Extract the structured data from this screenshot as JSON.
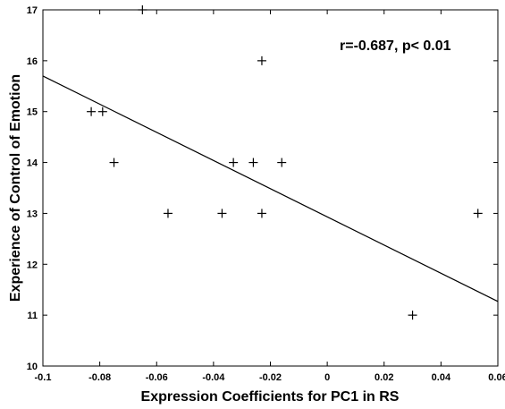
{
  "chart_data": {
    "type": "scatter",
    "title": "",
    "xlabel": "Expression Coefficients for PC1 in RS",
    "ylabel": "Experience of Control of Emotion",
    "xlim": [
      -0.1,
      0.06
    ],
    "ylim": [
      10,
      17
    ],
    "xticks": [
      "-0.1",
      "-0.08",
      "-0.06",
      "-0.04",
      "-0.02",
      "0",
      "0.02",
      "0.04",
      "0.06"
    ],
    "yticks": [
      "10",
      "11",
      "12",
      "13",
      "14",
      "15",
      "16",
      "17"
    ],
    "grid": false,
    "marker": "+",
    "annotation": "r=-0.687, p< 0.01",
    "points": [
      {
        "x": -0.083,
        "y": 15
      },
      {
        "x": -0.079,
        "y": 15
      },
      {
        "x": -0.075,
        "y": 14
      },
      {
        "x": -0.065,
        "y": 17
      },
      {
        "x": -0.056,
        "y": 13
      },
      {
        "x": -0.037,
        "y": 13
      },
      {
        "x": -0.033,
        "y": 14
      },
      {
        "x": -0.026,
        "y": 14
      },
      {
        "x": -0.023,
        "y": 13
      },
      {
        "x": -0.023,
        "y": 16
      },
      {
        "x": -0.016,
        "y": 14
      },
      {
        "x": 0.03,
        "y": 11
      },
      {
        "x": 0.053,
        "y": 13
      }
    ],
    "fit_line": {
      "x": [
        -0.1,
        0.06
      ],
      "y": [
        15.7,
        11.27
      ]
    }
  }
}
